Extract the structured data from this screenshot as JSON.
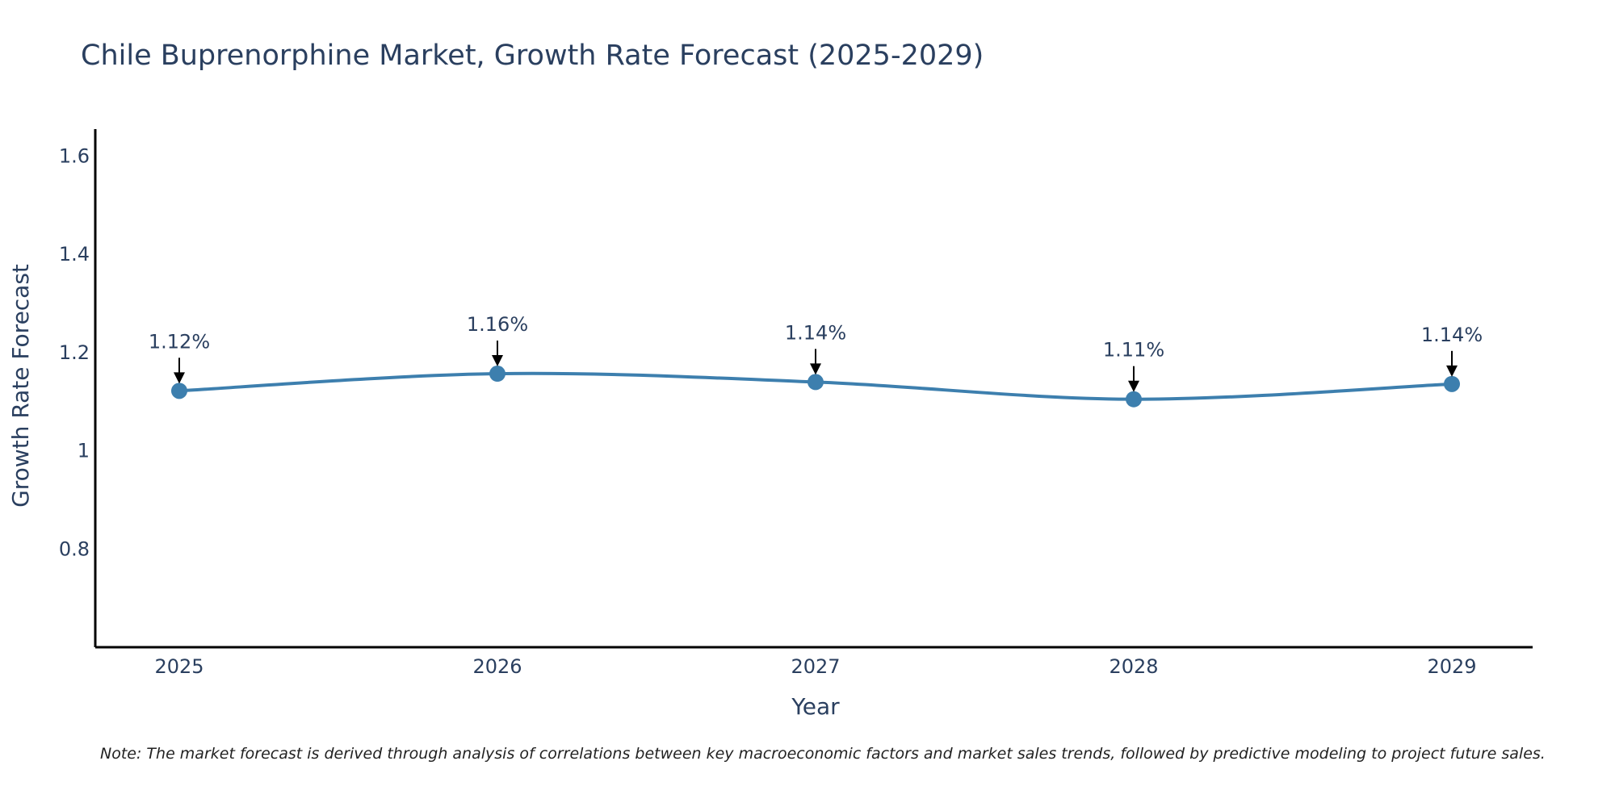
{
  "chart_data": {
    "type": "line",
    "title": "Chile Buprenorphine Market, Growth Rate Forecast (2025-2029)",
    "xlabel": "Year",
    "ylabel": "Growth Rate Forecast",
    "categories": [
      "2025",
      "2026",
      "2027",
      "2028",
      "2029"
    ],
    "series": [
      {
        "name": "Growth Rate Forecast",
        "values": [
          1.122,
          1.157,
          1.14,
          1.105,
          1.136
        ],
        "labels": [
          "1.12%",
          "1.16%",
          "1.14%",
          "1.11%",
          "1.14%"
        ],
        "color": "#3d7fae"
      }
    ],
    "ylim": [
      0.6,
      1.655
    ],
    "yticks": [
      0.8,
      1,
      1.2,
      1.4,
      1.6
    ],
    "ytick_labels": [
      "0.8",
      "1",
      "1.2",
      "1.4",
      "1.6"
    ],
    "grid": false,
    "note": "Note: The market forecast is derived through analysis of correlations between key macroeconomic factors and market sales trends, followed by predictive modeling to project future sales."
  },
  "colors": {
    "text": "#2a3f5f",
    "axis": "#000000",
    "line": "#3d7fae",
    "arrow": "#000000"
  }
}
